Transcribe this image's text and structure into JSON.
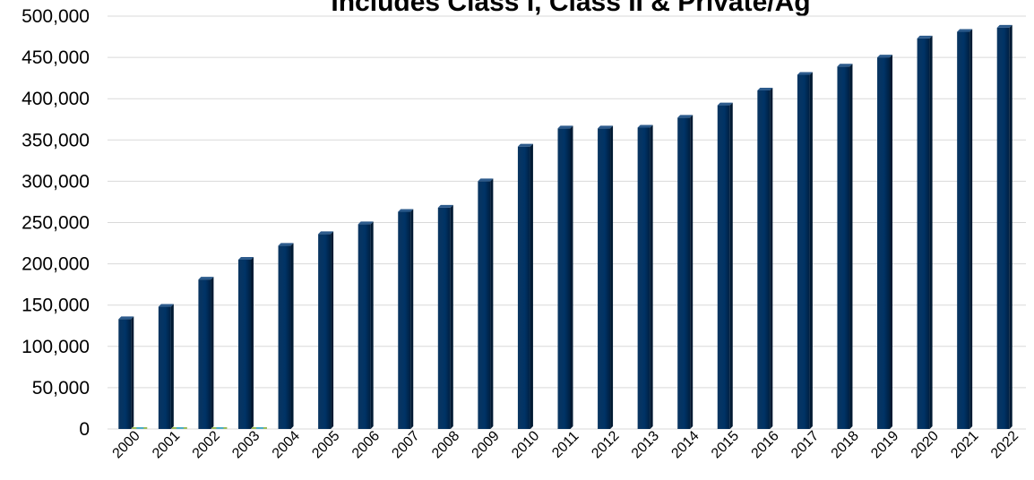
{
  "chart_data": {
    "type": "bar",
    "title": "Includes Class I, Class II & Private/Ag",
    "categories": [
      "2000",
      "2001",
      "2002",
      "2003",
      "2004",
      "2005",
      "2006",
      "2007",
      "2008",
      "2009",
      "2010",
      "2011",
      "2012",
      "2013",
      "2014",
      "2015",
      "2016",
      "2017",
      "2018",
      "2019",
      "2020",
      "2021",
      "2022"
    ],
    "series": [
      {
        "color": "#003366",
        "values": [
          133000,
          148000,
          181000,
          205000,
          222000,
          236000,
          248000,
          263000,
          268000,
          300000,
          342000,
          364000,
          364000,
          365000,
          377000,
          392000,
          410000,
          429000,
          439000,
          450000,
          473000,
          481000,
          486000
        ]
      },
      {
        "color": "#9bbb59",
        "values": [
          1500,
          1500,
          1500,
          1500,
          0,
          0,
          0,
          0,
          0,
          0,
          0,
          0,
          0,
          0,
          0,
          0,
          0,
          0,
          0,
          0,
          0,
          0,
          0
        ]
      }
    ],
    "yticks": [
      "0",
      "50,000",
      "100,000",
      "150,000",
      "200,000",
      "250,000",
      "300,000",
      "350,000",
      "400,000",
      "450,000",
      "500,000"
    ],
    "ylim": [
      0,
      500000
    ],
    "xlabel": "",
    "ylabel": "",
    "grid": true,
    "legend": "none"
  }
}
